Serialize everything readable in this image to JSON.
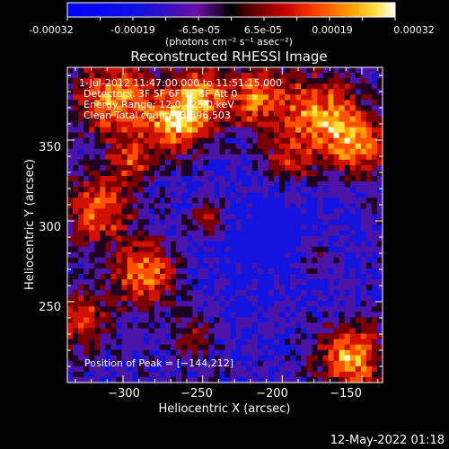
{
  "colorbar": {
    "tick_labels": [
      "-0.00032",
      "-0.00019",
      "-6.5e-05",
      "6.5e-05",
      "0.00019",
      "0.00032"
    ],
    "units_label": "(photons cm⁻² s⁻¹ asec⁻²)",
    "range": [
      -0.00032,
      0.00032
    ]
  },
  "chart_data": {
    "type": "heatmap",
    "title": "Reconstructed RHESSI Image",
    "xlabel": "Heliocentric X (arcsec)",
    "ylabel": "Heliocentric Y (arcsec)",
    "xlim": [
      -335,
      -137
    ],
    "ylim": [
      200,
      395
    ],
    "x_ticks": [
      -300,
      -250,
      -200,
      -150
    ],
    "x_tick_labels": [
      "−300",
      "−250",
      "−200",
      "−150"
    ],
    "y_ticks": [
      250,
      300,
      350
    ],
    "y_tick_labels": [
      "250",
      "300",
      "350"
    ],
    "annotations": [
      "1-Jul-2012 11:47:00.000 to 11:51:15.000",
      "Detectors: 3F 5F 6F 7F 8F  Att 0",
      "Energy Range: 12.0 - 25.0 keV",
      "Clean    Total counts: 3,396,503"
    ],
    "peak_text": "Position of Peak = [−144,212]",
    "peak_position": [
      -144,
      212
    ],
    "colormap": "blue-purple-red-yellow-white"
  },
  "footer": {
    "timestamp": "12-May-2022 01:18"
  }
}
